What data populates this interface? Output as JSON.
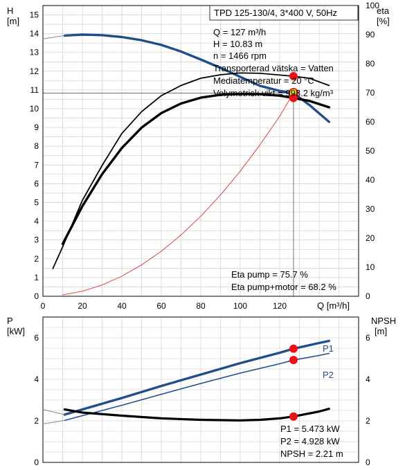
{
  "chart_data": [
    {
      "type": "line",
      "title": "TPD 125-130/4, 3*400 V, 50Hz",
      "x_axis": {
        "label": "Q [m³/h]",
        "range": [
          0,
          160
        ],
        "ticks": [
          0,
          20,
          40,
          60,
          80,
          100,
          120
        ]
      },
      "y_left": {
        "unit_line1": "H",
        "unit_line2": "[m]",
        "range": [
          0,
          15.5
        ],
        "ticks": [
          0,
          1,
          2,
          3,
          4,
          5,
          6,
          7,
          8,
          9,
          10,
          11,
          12,
          13,
          14,
          15
        ]
      },
      "y_right": {
        "unit_line1": "eta",
        "unit_line2": "[%]",
        "range": [
          0,
          100
        ],
        "ticks": [
          0,
          10,
          20,
          30,
          40,
          50,
          60,
          70,
          80,
          90,
          100
        ]
      },
      "grid": true,
      "info": [
        "Q = 127 m³/h",
        "H = 10.83 m",
        "n = 1466 rpm",
        "Transporterad vätska = Vatten",
        "Mediatemperatur = 20 °C",
        "Volymetrisk vikt = 998.2 kg/m³"
      ],
      "efficiency_labels": [
        "Eta pump = 75.7 %",
        "Eta pump+motor = 68.2 %"
      ],
      "series": [
        {
          "key": "H",
          "axis": "left",
          "color": "#1f4e8c",
          "x": [
            11,
            20,
            30,
            40,
            50,
            60,
            70,
            80,
            90,
            100,
            110,
            120,
            127,
            135,
            145
          ],
          "y": [
            13.9,
            13.95,
            13.92,
            13.82,
            13.65,
            13.4,
            13.05,
            12.62,
            12.18,
            11.7,
            11.22,
            10.95,
            10.83,
            10.2,
            9.3
          ]
        },
        {
          "key": "H_ext",
          "axis": "left",
          "color": "#888888",
          "x": [
            0,
            6,
            11
          ],
          "y": [
            13.72,
            13.82,
            13.9
          ]
        },
        {
          "key": "eta_pump",
          "axis": "right",
          "color": "#000000",
          "x": [
            5,
            10,
            20,
            30,
            40,
            50,
            60,
            70,
            80,
            90,
            100,
            110,
            120,
            127,
            135,
            145
          ],
          "y": [
            9.5,
            17,
            33,
            45,
            56,
            63.5,
            69,
            72.5,
            75,
            76.2,
            76.8,
            76.7,
            76.1,
            75.7,
            75,
            72.5
          ]
        },
        {
          "key": "eta_pump_motor",
          "axis": "right",
          "color": "#000000",
          "x": [
            10,
            20,
            30,
            40,
            50,
            60,
            70,
            80,
            90,
            100,
            110,
            120,
            127,
            135,
            145
          ],
          "y": [
            18,
            31,
            42,
            51,
            58,
            63,
            66.3,
            68.3,
            69.3,
            69.6,
            69.5,
            69.0,
            68.2,
            67.2,
            65
          ]
        },
        {
          "key": "system_curve",
          "axis": "left",
          "color": "#e03030",
          "x": [
            10,
            20,
            30,
            40,
            50,
            60,
            70,
            80,
            90,
            100,
            110,
            120,
            127
          ],
          "y": [
            0.07,
            0.27,
            0.6,
            1.07,
            1.67,
            2.4,
            3.27,
            4.27,
            5.4,
            6.67,
            8.07,
            9.6,
            10.83
          ]
        }
      ],
      "duty_points": [
        {
          "axis": "left",
          "x": 127,
          "y": 10.83,
          "style": "yellow"
        },
        {
          "axis": "right",
          "x": 127,
          "y": 75.7,
          "style": "red"
        },
        {
          "axis": "right",
          "x": 127,
          "y": 68.2,
          "style": "red"
        }
      ],
      "operating_line": {
        "x": 127,
        "y_left": 10.83
      }
    },
    {
      "type": "line",
      "x_axis": {
        "range": [
          0,
          160
        ]
      },
      "y_left": {
        "unit_line1": "P",
        "unit_line2": "[kW]",
        "range": [
          0,
          7
        ],
        "ticks": [
          0,
          2,
          4,
          6
        ]
      },
      "y_right": {
        "unit_line1": "NPSH",
        "unit_line2": "[m]",
        "range": [
          0,
          7
        ],
        "ticks": [
          0,
          2,
          4,
          6
        ]
      },
      "grid": true,
      "info": [
        "P1 = 5.473 kW",
        "P2 = 4.928 kW",
        "NPSH = 2.21 m"
      ],
      "series": [
        {
          "key": "P1",
          "name": "P1",
          "axis": "left",
          "color": "#1f4e8c",
          "x": [
            11,
            20,
            40,
            60,
            80,
            100,
            120,
            127,
            140,
            145
          ],
          "y": [
            2.3,
            2.55,
            3.1,
            3.68,
            4.23,
            4.78,
            5.28,
            5.473,
            5.75,
            5.85
          ]
        },
        {
          "key": "P2",
          "name": "P2",
          "axis": "left",
          "color": "#1f4e8c",
          "x": [
            11,
            20,
            40,
            60,
            80,
            100,
            120,
            127,
            140,
            145
          ],
          "y": [
            2.02,
            2.25,
            2.75,
            3.28,
            3.8,
            4.3,
            4.75,
            4.928,
            5.15,
            5.25
          ]
        },
        {
          "key": "NPSH",
          "axis": "right",
          "color": "#000000",
          "x": [
            11,
            20,
            40,
            60,
            80,
            100,
            110,
            120,
            127,
            140,
            145
          ],
          "y": [
            2.55,
            2.4,
            2.25,
            2.12,
            2.05,
            2.02,
            2.05,
            2.12,
            2.21,
            2.45,
            2.58
          ]
        },
        {
          "key": "P1_ext",
          "axis": "left",
          "color": "#888888",
          "x": [
            0,
            11
          ],
          "y": [
            2.55,
            2.3
          ]
        },
        {
          "key": "P2_ext",
          "axis": "left",
          "color": "#888888",
          "x": [
            0,
            11
          ],
          "y": [
            1.85,
            2.02
          ]
        }
      ],
      "duty_points": [
        {
          "axis": "left",
          "x": 127,
          "y": 5.473,
          "style": "red"
        },
        {
          "axis": "left",
          "x": 127,
          "y": 4.928,
          "style": "red"
        },
        {
          "axis": "right",
          "x": 127,
          "y": 2.21,
          "style": "red"
        }
      ]
    }
  ]
}
